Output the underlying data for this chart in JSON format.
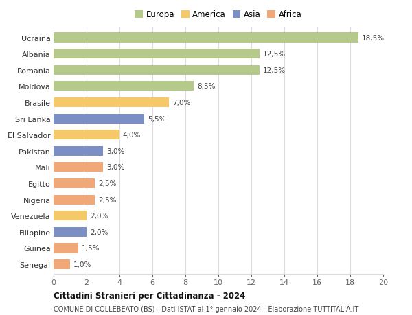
{
  "countries": [
    "Ucraina",
    "Albania",
    "Romania",
    "Moldova",
    "Brasile",
    "Sri Lanka",
    "El Salvador",
    "Pakistan",
    "Mali",
    "Egitto",
    "Nigeria",
    "Venezuela",
    "Filippine",
    "Guinea",
    "Senegal"
  ],
  "values": [
    18.5,
    12.5,
    12.5,
    8.5,
    7.0,
    5.5,
    4.0,
    3.0,
    3.0,
    2.5,
    2.5,
    2.0,
    2.0,
    1.5,
    1.0
  ],
  "labels": [
    "18,5%",
    "12,5%",
    "12,5%",
    "8,5%",
    "7,0%",
    "5,5%",
    "4,0%",
    "3,0%",
    "3,0%",
    "2,5%",
    "2,5%",
    "2,0%",
    "2,0%",
    "1,5%",
    "1,0%"
  ],
  "continents": [
    "Europa",
    "Europa",
    "Europa",
    "Europa",
    "America",
    "Asia",
    "America",
    "Asia",
    "Africa",
    "Africa",
    "Africa",
    "America",
    "Asia",
    "Africa",
    "Africa"
  ],
  "colors": {
    "Europa": "#b5c98a",
    "America": "#f5c96a",
    "Asia": "#7b8fc4",
    "Africa": "#f0a878"
  },
  "legend_order": [
    "Europa",
    "America",
    "Asia",
    "Africa"
  ],
  "xlim": [
    0,
    20
  ],
  "xticks": [
    0,
    2,
    4,
    6,
    8,
    10,
    12,
    14,
    16,
    18,
    20
  ],
  "title": "Cittadini Stranieri per Cittadinanza - 2024",
  "subtitle": "COMUNE DI COLLEBEATO (BS) - Dati ISTAT al 1° gennaio 2024 - Elaborazione TUTTITALIA.IT",
  "grid_color": "#dddddd",
  "bar_height": 0.6
}
